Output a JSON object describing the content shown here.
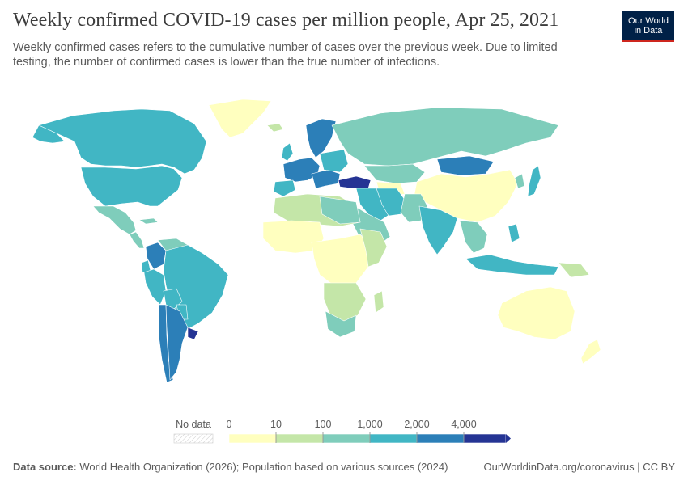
{
  "header": {
    "title": "Weekly confirmed COVID-19 cases per million people, Apr 25, 2021",
    "subtitle": "Weekly confirmed cases refers to the cumulative number of cases over the previous week. Due to limited testing, the number of confirmed cases is lower than the true number of infections.",
    "logo_line1": "Our World",
    "logo_line2": "in Data",
    "logo_bg": "#002147",
    "logo_accent": "#ce261e"
  },
  "legend": {
    "no_data_label": "No data",
    "ticks": [
      "0",
      "10",
      "100",
      "1,000",
      "2,000",
      "4,000"
    ],
    "colors": [
      "#ffffbf",
      "#c4e6a8",
      "#7fcdbb",
      "#41b6c4",
      "#2c7fb8",
      "#253494"
    ]
  },
  "map": {
    "ocean": "#ffffff",
    "border": "#ffffff",
    "no_data_color": "#eeeeee"
  },
  "footer": {
    "source_label": "Data source:",
    "source_text": "World Health Organization (2026); Population based on various sources (2024)",
    "url_text": "OurWorldinData.org/coronavirus | CC BY"
  }
}
